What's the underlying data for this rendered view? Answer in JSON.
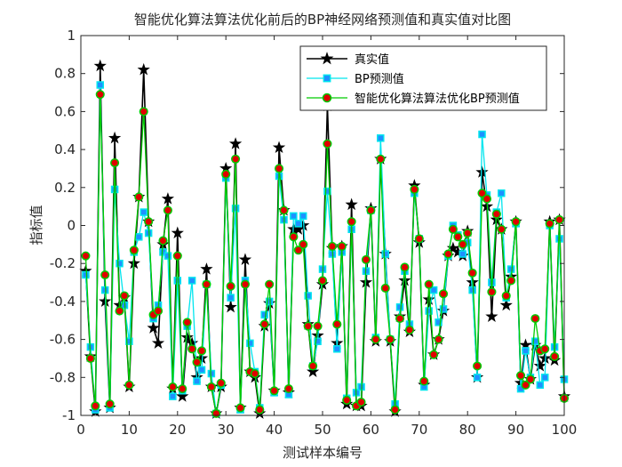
{
  "chart_data": {
    "type": "line",
    "title": "智能优化算法算法优化前后的BP神经网络预测值和真实值对比图",
    "xlabel": "测试样本编号",
    "ylabel": "指标值",
    "xlim": [
      0,
      100
    ],
    "ylim": [
      -1,
      1
    ],
    "xticks": [
      "0",
      "10",
      "20",
      "30",
      "40",
      "50",
      "60",
      "70",
      "80",
      "90",
      "100"
    ],
    "yticks": [
      "-1",
      "-0.8",
      "-0.6",
      "-0.4",
      "-0.2",
      "0",
      "0.2",
      "0.4",
      "0.6",
      "0.8",
      "1"
    ],
    "legend_position": "top-right",
    "x": [
      1,
      2,
      3,
      4,
      5,
      6,
      7,
      8,
      9,
      10,
      11,
      12,
      13,
      14,
      15,
      16,
      17,
      18,
      19,
      20,
      21,
      22,
      23,
      24,
      25,
      26,
      27,
      28,
      29,
      30,
      31,
      32,
      33,
      34,
      35,
      36,
      37,
      38,
      39,
      40,
      41,
      42,
      43,
      44,
      45,
      46,
      47,
      48,
      49,
      50,
      51,
      52,
      53,
      54,
      55,
      56,
      57,
      58,
      59,
      60,
      61,
      62,
      63,
      64,
      65,
      66,
      67,
      68,
      69,
      70,
      71,
      72,
      73,
      74,
      75,
      76,
      77,
      78,
      79,
      80,
      81,
      82,
      83,
      84,
      85,
      86,
      87,
      88,
      89,
      90,
      91,
      92,
      93,
      94,
      95,
      96,
      97,
      98,
      99,
      100
    ],
    "series": [
      {
        "name": "真实值",
        "color": "#000000",
        "marker": "star",
        "values": [
          -0.24,
          -0.69,
          -0.98,
          0.84,
          -0.4,
          -0.96,
          0.46,
          -0.42,
          -0.38,
          -0.85,
          -0.2,
          0.15,
          0.82,
          0.02,
          -0.54,
          -0.62,
          -0.1,
          0.14,
          -0.86,
          -0.04,
          -0.9,
          -0.59,
          -0.62,
          -0.8,
          -0.7,
          -0.23,
          -0.85,
          -0.99,
          -0.85,
          0.3,
          -0.43,
          0.43,
          -0.96,
          -0.18,
          -0.77,
          -0.8,
          -0.99,
          -0.53,
          -0.41,
          -0.87,
          0.41,
          0.08,
          -0.88,
          -0.02,
          -0.02,
          0.0,
          -0.52,
          -0.77,
          -0.58,
          -0.31,
          0.63,
          -0.12,
          -0.62,
          -0.11,
          -0.94,
          0.11,
          -0.95,
          -0.95,
          -0.3,
          0.09,
          -0.61,
          0.35,
          -0.15,
          -0.61,
          -0.98,
          -0.48,
          -0.29,
          -0.56,
          0.21,
          -0.09,
          -0.84,
          -0.39,
          -0.68,
          -0.6,
          -0.45,
          -0.16,
          -0.12,
          -0.14,
          -0.16,
          -0.03,
          -0.3,
          -0.8,
          0.28,
          0.1,
          -0.48,
          0.03,
          -0.02,
          -0.42,
          -0.27,
          0.02,
          -0.83,
          -0.63,
          -0.81,
          -0.63,
          -0.74,
          -0.7,
          0.02,
          -0.71,
          0.03,
          -0.9
        ]
      },
      {
        "name": "BP预测值",
        "color": "#00e5ee",
        "marker": "square",
        "values": [
          -0.26,
          -0.64,
          -0.97,
          0.74,
          -0.34,
          -0.96,
          0.19,
          -0.2,
          -0.42,
          -0.61,
          -0.14,
          -0.06,
          0.07,
          -0.04,
          -0.49,
          -0.42,
          -0.14,
          -0.16,
          -0.9,
          -0.29,
          -0.87,
          -0.53,
          -0.29,
          -0.82,
          -0.76,
          -0.31,
          -0.78,
          -0.99,
          -0.84,
          0.25,
          -0.38,
          0.09,
          -0.97,
          -0.29,
          -0.62,
          -0.77,
          -0.96,
          -0.47,
          -0.4,
          -0.88,
          0.26,
          0.03,
          -0.89,
          0.05,
          0.01,
          0.05,
          -0.37,
          -0.74,
          -0.61,
          -0.23,
          0.18,
          -0.15,
          -0.65,
          -0.14,
          -0.91,
          -0.02,
          -0.88,
          -0.85,
          -0.24,
          0.08,
          -0.59,
          0.46,
          -0.15,
          -0.6,
          -0.94,
          -0.43,
          -0.24,
          -0.52,
          0.17,
          -0.07,
          -0.85,
          -0.45,
          -0.34,
          -0.51,
          -0.44,
          -0.16,
          0.0,
          -0.05,
          -0.15,
          -0.09,
          -0.34,
          -0.8,
          0.48,
          0.16,
          -0.3,
          0.07,
          0.17,
          -0.38,
          -0.23,
          0.01,
          -0.86,
          -0.66,
          -0.8,
          -0.61,
          -0.84,
          -0.8,
          0.0,
          -0.64,
          -0.07,
          -0.81
        ]
      },
      {
        "name": "智能优化算法算法优化BP预测值",
        "color": "#00cc00",
        "marker": "circle",
        "values": [
          -0.16,
          -0.7,
          -0.95,
          0.69,
          -0.26,
          -0.94,
          0.33,
          -0.45,
          -0.37,
          -0.84,
          -0.13,
          0.15,
          0.6,
          0.02,
          -0.47,
          -0.45,
          -0.08,
          0.08,
          -0.85,
          -0.16,
          -0.86,
          -0.51,
          -0.65,
          -0.72,
          -0.66,
          -0.31,
          -0.85,
          -0.99,
          -0.83,
          0.27,
          -0.32,
          0.35,
          -0.96,
          -0.31,
          -0.77,
          -0.78,
          -0.97,
          -0.52,
          -0.31,
          -0.87,
          0.3,
          0.08,
          -0.86,
          -0.06,
          -0.13,
          -0.1,
          -0.53,
          -0.74,
          -0.53,
          -0.29,
          0.43,
          -0.11,
          -0.52,
          -0.11,
          -0.92,
          0.02,
          -0.95,
          -0.93,
          -0.18,
          0.08,
          -0.6,
          0.35,
          -0.33,
          -0.6,
          -0.97,
          -0.49,
          -0.22,
          -0.55,
          0.19,
          -0.07,
          -0.82,
          -0.31,
          -0.68,
          -0.6,
          -0.36,
          -0.15,
          -0.02,
          -0.06,
          -0.1,
          -0.04,
          -0.25,
          -0.74,
          0.17,
          0.14,
          -0.35,
          0.06,
          -0.02,
          -0.37,
          -0.29,
          0.02,
          -0.79,
          -0.84,
          -0.81,
          -0.49,
          -0.66,
          -0.65,
          0.01,
          -0.69,
          0.03,
          -0.91
        ]
      }
    ]
  }
}
